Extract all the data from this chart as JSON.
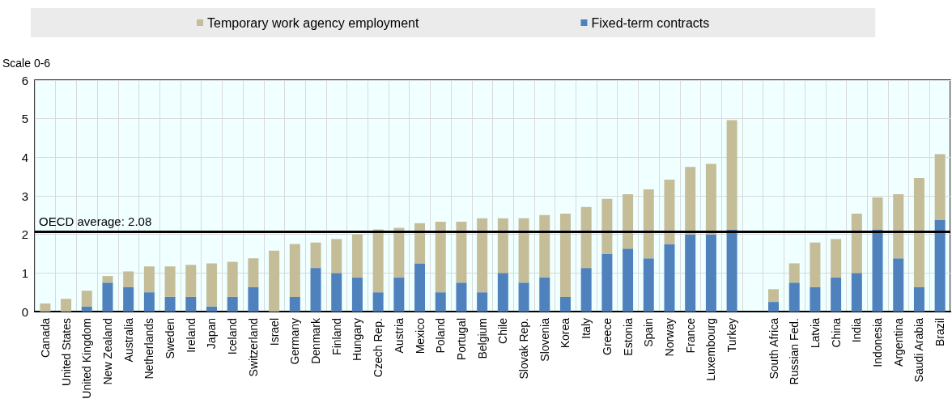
{
  "chart_data": {
    "type": "bar",
    "stacked": true,
    "ylabel": "Scale 0-6",
    "categories": [
      "Canada",
      "United States",
      "United Kingdom",
      "New Zealand",
      "Australia",
      "Netherlands",
      "Sweden",
      "Ireland",
      "Japan",
      "Iceland",
      "Switzerland",
      "Israel",
      "Germany",
      "Denmark",
      "Finland",
      "Hungary",
      "Czech Rep.",
      "Austria",
      "Mexico",
      "Poland",
      "Portugal",
      "Belgium",
      "Chile",
      "Slovak Rep.",
      "Slovenia",
      "Korea",
      "Italy",
      "Greece",
      "Estonia",
      "Spain",
      "Norway",
      "France",
      "Luxembourg",
      "Turkey",
      null,
      "South Africa",
      "Russian Fed.",
      "Latvia",
      "China",
      "India",
      "Indonesia",
      "Argentina",
      "Saudi Arabia",
      "Brazil"
    ],
    "series": [
      {
        "name": "Fixed-term contracts",
        "color": "#4f81bd",
        "values": [
          0,
          0,
          0.13,
          0.75,
          0.63,
          0.5,
          0.38,
          0.38,
          0.13,
          0.38,
          0.63,
          0,
          0.38,
          1.13,
          1.0,
          0.88,
          0.5,
          0.88,
          1.25,
          0.5,
          0.75,
          0.5,
          1.0,
          0.75,
          0.88,
          0.38,
          1.13,
          1.5,
          1.63,
          1.38,
          1.75,
          2.0,
          2.0,
          2.13,
          null,
          0.25,
          0.75,
          0.63,
          0.88,
          1.0,
          2.13,
          1.38,
          0.63,
          2.38
        ]
      },
      {
        "name": "Temporary work agency employment",
        "color": "#c4bd97",
        "values": [
          0.21,
          0.33,
          0.41,
          0.17,
          0.41,
          0.67,
          0.79,
          0.83,
          1.12,
          0.91,
          0.75,
          1.58,
          1.37,
          0.66,
          0.88,
          1.12,
          1.63,
          1.29,
          1.04,
          1.83,
          1.58,
          1.92,
          1.42,
          1.67,
          1.62,
          2.16,
          1.58,
          1.42,
          1.41,
          1.79,
          1.67,
          1.75,
          1.83,
          2.83,
          null,
          0.33,
          0.5,
          1.16,
          1.0,
          1.54,
          0.83,
          1.66,
          2.83,
          1.7
        ]
      }
    ],
    "ylim": [
      0,
      6
    ],
    "yticks": [
      0,
      1,
      2,
      3,
      4,
      5,
      6
    ],
    "grid": true,
    "legend": "top",
    "ref_lines": [
      {
        "axis": "y",
        "value": 2.08,
        "label": "OECD average: 2.08",
        "color": "#000000"
      }
    ]
  }
}
